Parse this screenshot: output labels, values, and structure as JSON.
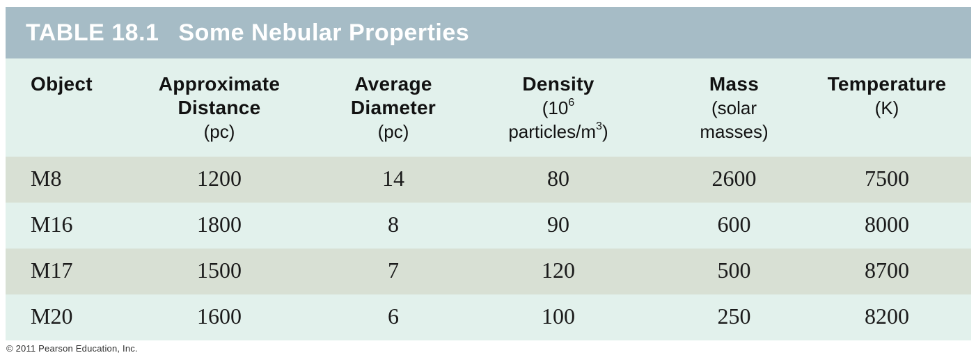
{
  "colors": {
    "title_bar_bg": "#a6bcc6",
    "title_text": "#ffffff",
    "header_bg": "#e2f1ec",
    "row_odd_bg": "#d8e0d4",
    "row_even_bg": "#e2f1ec",
    "header_text": "#121212",
    "data_text": "#1a1a1a",
    "copyright_text": "#2f2f2f"
  },
  "table": {
    "label": "TABLE 18.1",
    "title": "Some Nebular Properties",
    "columns": {
      "object": {
        "title": "Object"
      },
      "distance": {
        "title_line1": "Approximate",
        "title_line2": "Distance",
        "unit": "(pc)"
      },
      "diameter": {
        "title_line1": "Average",
        "title_line2": "Diameter",
        "unit": "(pc)"
      },
      "density": {
        "title": "Density",
        "unit_line1": {
          "base": "(10",
          "sup": "6"
        },
        "unit_line2": {
          "base": "particles/m",
          "sup": "3",
          "close": ")"
        }
      },
      "mass": {
        "title": "Mass",
        "unit_line1": "(solar",
        "unit_line2": "masses)"
      },
      "temperature": {
        "title": "Temperature",
        "unit": "(K)"
      }
    },
    "rows": [
      {
        "object": "M8",
        "distance": "1200",
        "diameter": "14",
        "density": "80",
        "mass": "2600",
        "temperature": "7500"
      },
      {
        "object": "M16",
        "distance": "1800",
        "diameter": "8",
        "density": "90",
        "mass": "600",
        "temperature": "8000"
      },
      {
        "object": "M17",
        "distance": "1500",
        "diameter": "7",
        "density": "120",
        "mass": "500",
        "temperature": "8700"
      },
      {
        "object": "M20",
        "distance": "1600",
        "diameter": "6",
        "density": "100",
        "mass": "250",
        "temperature": "8200"
      }
    ]
  },
  "footer": {
    "copyright": "© 2011 Pearson Education, Inc."
  }
}
